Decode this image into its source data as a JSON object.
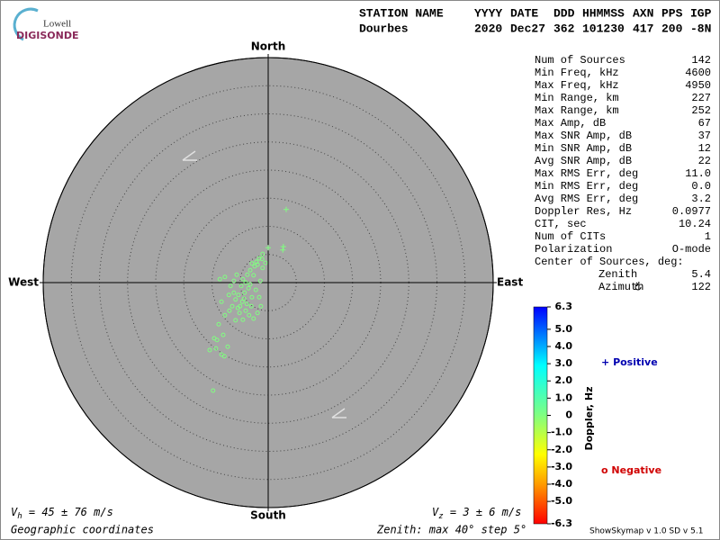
{
  "logo": {
    "top": "Lowell",
    "bottom": "DIGISONDE"
  },
  "header": {
    "labels": [
      "STATION NAME",
      "YYYY",
      "DATE",
      "DDD",
      "HHMMSS",
      "AXN",
      "PPS",
      "IGP"
    ],
    "values": [
      "Dourbes",
      "2020",
      "Dec27",
      "362",
      "101230",
      "417",
      "200",
      "-8N"
    ]
  },
  "stats": {
    "rows": [
      [
        "Num of Sources",
        "142"
      ],
      [
        "Min Freq, kHz",
        "4600"
      ],
      [
        "Max Freq, kHz",
        "4950"
      ],
      [
        "Min Range, km",
        "227"
      ],
      [
        "Max Range, km",
        "252"
      ],
      [
        "Max Amp, dB",
        "67"
      ],
      [
        "Max SNR Amp, dB",
        "37"
      ],
      [
        "Min SNR Amp, dB",
        "12"
      ],
      [
        "Avg SNR Amp, dB",
        "22"
      ],
      [
        "Max RMS Err, deg",
        "11.0"
      ],
      [
        "Min RMS Err, deg",
        "0.0"
      ],
      [
        "Avg RMS Err, deg",
        "3.2"
      ],
      [
        "Doppler Res, Hz",
        "0.0977"
      ],
      [
        "CIT, sec",
        "10.24"
      ],
      [
        "Num of CITs",
        "1"
      ],
      [
        "Polarization",
        "O-mode"
      ]
    ],
    "center_title": "Center of Sources, deg:",
    "center_rows": [
      [
        "Zenith",
        "5.4"
      ],
      [
        "Azimuth",
        "122"
      ]
    ]
  },
  "footer": {
    "vh": [
      "V",
      "h",
      " = 45 ± 76 m/s"
    ],
    "vz": [
      "V",
      "z",
      " = 3 ± 6 m/s"
    ],
    "coordinates": "Geographic coordinates",
    "zenith_note": "Zenith: max 40°  step 5°",
    "version": "ShowSkymap v 1.0  SD v 5.1"
  },
  "chart_data": {
    "type": "skymap",
    "directions": {
      "north": "North",
      "south": "South",
      "east": "East",
      "west": "West"
    },
    "rlim": [
      0,
      40
    ],
    "rticks": [
      5,
      10,
      15,
      20,
      25,
      30,
      35,
      40
    ],
    "series": [
      {
        "name": "Positive",
        "marker": "+",
        "color": "#80ff80",
        "legend_color": "#0000b0",
        "x": [
          3.2,
          0,
          2.7,
          2.6
        ],
        "y": [
          13.0,
          6.2,
          6.4,
          5.8
        ]
      },
      {
        "name": "Negative",
        "marker": "o",
        "color": "#80ff80",
        "legend_color": "#d00000",
        "x": [
          -1.0,
          -1.6,
          -2.1,
          -1.1,
          -2.9,
          -2.4,
          -3.2,
          -1.9,
          -3.7,
          -4.5,
          -4.0,
          -4.8,
          -3.5,
          -4.2,
          -5.3,
          -5.8,
          -4.6,
          -6.4,
          -5.4,
          -3.8,
          -2.9,
          -2.2,
          -3.2,
          -1.4,
          -1.3,
          -1.9,
          -2.6,
          -6.9,
          -7.7,
          -8.3,
          -8.6,
          -7.7,
          -6.7,
          -6.1,
          -5.1,
          -5.8,
          -8.8,
          -8.0,
          -9.6,
          -10.4,
          -9.1,
          -9.3,
          -8.3,
          -7.2,
          -7.8,
          -9.8,
          -1.0,
          -0.5,
          -2.6,
          -4.3,
          -5.0,
          -4.0,
          -3.4,
          -6.1,
          -7.0,
          -5.6,
          -1.6,
          -3.0,
          -4.5
        ],
        "y": [
          5.1,
          4.3,
          3.7,
          4.2,
          3.4,
          2.9,
          2.2,
          3.2,
          1.4,
          0.6,
          0,
          -0.6,
          -1.0,
          -1.8,
          -2.2,
          -3.0,
          -3.4,
          -4.2,
          -4.5,
          -3.8,
          -2.6,
          -1.3,
          -0.3,
          0.3,
          -4.2,
          -5.4,
          -6.4,
          -5.0,
          -5.8,
          -3.4,
          0.6,
          1.0,
          -0.6,
          -1.8,
          -5.4,
          -6.7,
          -7.4,
          -9.3,
          -9.9,
          -12.0,
          -10.2,
          -11.7,
          -12.8,
          -11.4,
          -13.1,
          -19.2,
          2.6,
          3.5,
          1.3,
          -2.9,
          -4.2,
          -5.0,
          -5.8,
          0.3,
          -2.2,
          1.4,
          -2.6,
          -4.2,
          -6.6
        ]
      }
    ],
    "colorbar": {
      "label": "Doppler, Hz",
      "lim": [
        -6.3,
        6.3
      ],
      "ticks": [
        6.3,
        {
          "value": 5,
          "label": "5.0"
        },
        {
          "value": 4,
          "label": "4.0"
        },
        {
          "value": 3,
          "label": "3.0"
        },
        {
          "value": 2,
          "label": "2.0"
        },
        {
          "value": 1,
          "label": "1.0"
        },
        0,
        {
          "value": -1,
          "label": "-1.0"
        },
        {
          "value": -2,
          "label": "-2.0"
        },
        {
          "value": -3,
          "label": "-3.0"
        },
        {
          "value": -4,
          "label": "-4.0"
        },
        {
          "value": -5,
          "label": "-5.0"
        },
        -6.3
      ]
    }
  }
}
